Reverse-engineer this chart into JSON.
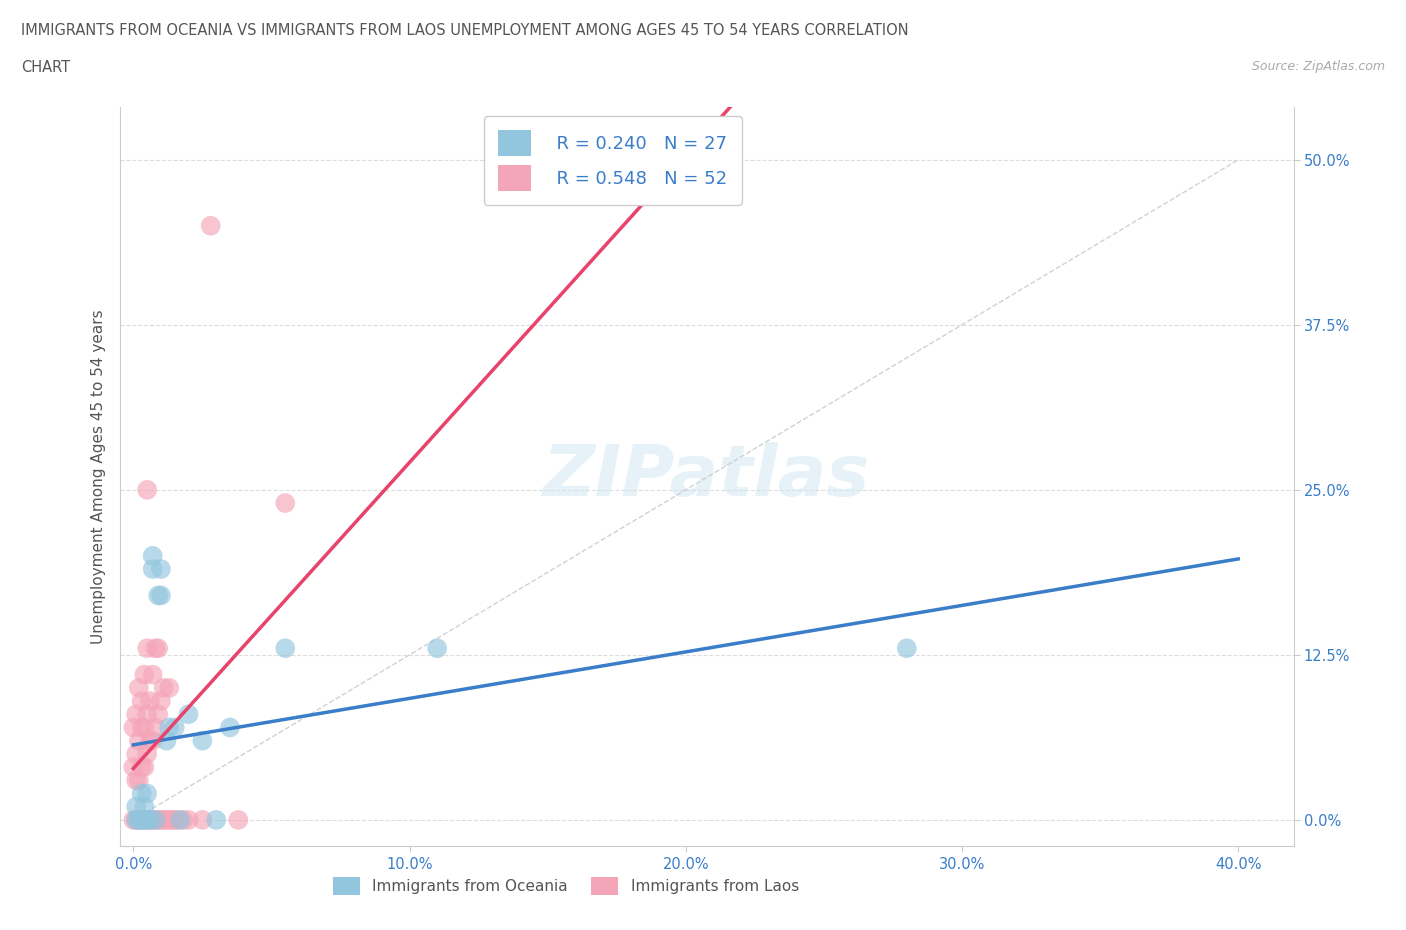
{
  "title_line1": "IMMIGRANTS FROM OCEANIA VS IMMIGRANTS FROM LAOS UNEMPLOYMENT AMONG AGES 45 TO 54 YEARS CORRELATION",
  "title_line2": "CHART",
  "source_text": "Source: ZipAtlas.com",
  "ylabel": "Unemployment Among Ages 45 to 54 years",
  "x_tick_labels": [
    "0.0%",
    "10.0%",
    "20.0%",
    "30.0%",
    "40.0%"
  ],
  "x_ticks": [
    0.0,
    0.1,
    0.2,
    0.3,
    0.4
  ],
  "y_ticks": [
    0.0,
    0.125,
    0.25,
    0.375,
    0.5
  ],
  "y_tick_labels": [
    "0.0%",
    "12.5%",
    "25.0%",
    "37.5%",
    "50.0%"
  ],
  "xlim": [
    -0.005,
    0.42
  ],
  "ylim": [
    -0.02,
    0.54
  ],
  "oceania_R": 0.24,
  "oceania_N": 27,
  "laos_R": 0.548,
  "laos_N": 52,
  "oceania_color": "#92c5de",
  "laos_color": "#f4a5b8",
  "oceania_line_color": "#3a7dc9",
  "laos_line_color": "#e8436a",
  "grid_color": "#cccccc",
  "background_color": "#ffffff",
  "legend_text_color": "#3a7dc9",
  "title_color": "#555555",
  "tick_color": "#3a7dc9",
  "oceania_x": [
    0.001,
    0.001,
    0.002,
    0.003,
    0.003,
    0.004,
    0.004,
    0.005,
    0.005,
    0.006,
    0.007,
    0.007,
    0.008,
    0.009,
    0.01,
    0.01,
    0.012,
    0.013,
    0.015,
    0.017,
    0.02,
    0.025,
    0.03,
    0.035,
    0.055,
    0.11,
    0.28
  ],
  "oceania_y": [
    0.0,
    0.01,
    0.0,
    0.0,
    0.02,
    0.0,
    0.01,
    0.0,
    0.02,
    0.0,
    0.19,
    0.2,
    0.0,
    0.17,
    0.17,
    0.19,
    0.06,
    0.07,
    0.07,
    0.0,
    0.08,
    0.06,
    0.0,
    0.07,
    0.13,
    0.13,
    0.13
  ],
  "laos_x": [
    0.0,
    0.0,
    0.0,
    0.001,
    0.001,
    0.001,
    0.001,
    0.002,
    0.002,
    0.002,
    0.002,
    0.003,
    0.003,
    0.003,
    0.003,
    0.004,
    0.004,
    0.004,
    0.004,
    0.005,
    0.005,
    0.005,
    0.005,
    0.005,
    0.006,
    0.006,
    0.006,
    0.007,
    0.007,
    0.007,
    0.008,
    0.008,
    0.008,
    0.009,
    0.009,
    0.009,
    0.01,
    0.01,
    0.011,
    0.011,
    0.012,
    0.013,
    0.013,
    0.014,
    0.015,
    0.016,
    0.018,
    0.02,
    0.025,
    0.028,
    0.038,
    0.055
  ],
  "laos_y": [
    0.0,
    0.04,
    0.07,
    0.0,
    0.03,
    0.05,
    0.08,
    0.0,
    0.03,
    0.06,
    0.1,
    0.0,
    0.04,
    0.07,
    0.09,
    0.0,
    0.04,
    0.07,
    0.11,
    0.0,
    0.05,
    0.08,
    0.13,
    0.25,
    0.0,
    0.06,
    0.09,
    0.0,
    0.06,
    0.11,
    0.0,
    0.07,
    0.13,
    0.0,
    0.08,
    0.13,
    0.0,
    0.09,
    0.0,
    0.1,
    0.0,
    0.0,
    0.1,
    0.0,
    0.0,
    0.0,
    0.0,
    0.0,
    0.0,
    0.45,
    0.0,
    0.24
  ]
}
